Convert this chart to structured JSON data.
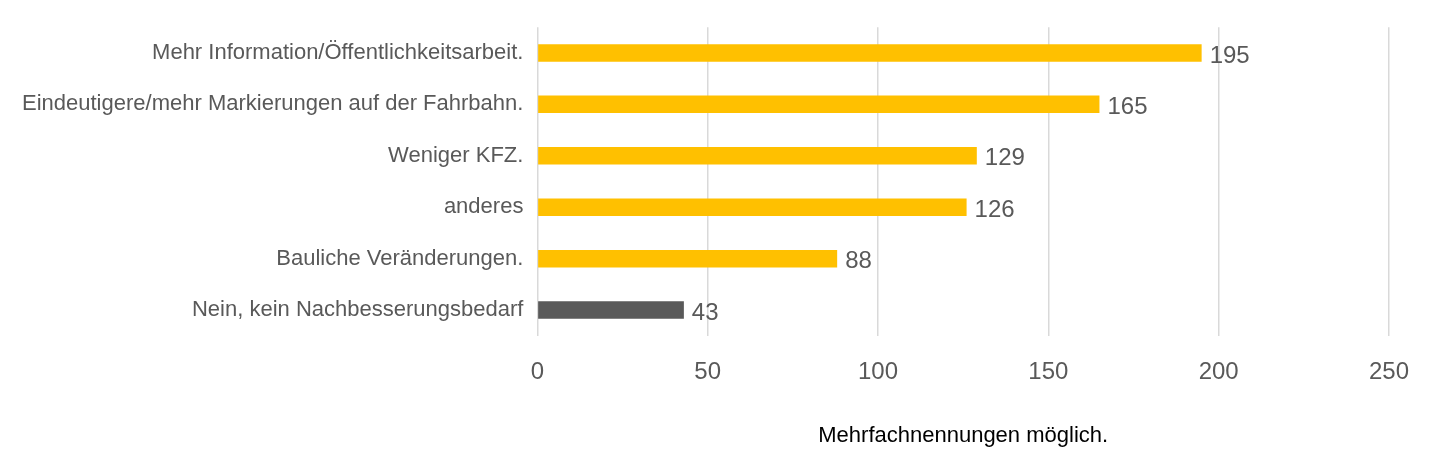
{
  "chart_data": {
    "type": "bar",
    "orientation": "horizontal",
    "xlabel": "Mehrfachnennungen möglich.",
    "categories": [
      "Mehr Information/Öffentlichkeitsarbeit.",
      "Eindeutigere/mehr Markierungen auf der Fahrbahn.",
      "Weniger KFZ.",
      "anderes",
      "Bauliche Veränderungen.",
      "Nein, kein Nachbesserungsbedarf"
    ],
    "values": [
      195,
      165,
      129,
      126,
      88,
      43
    ],
    "colors": [
      "#ffc000",
      "#ffc000",
      "#ffc000",
      "#ffc000",
      "#ffc000",
      "#595959"
    ],
    "xlim": [
      0,
      250
    ],
    "xticks": [
      0,
      50,
      100,
      150,
      200,
      250
    ],
    "grid": "x",
    "data_labels": true,
    "legend": false
  }
}
